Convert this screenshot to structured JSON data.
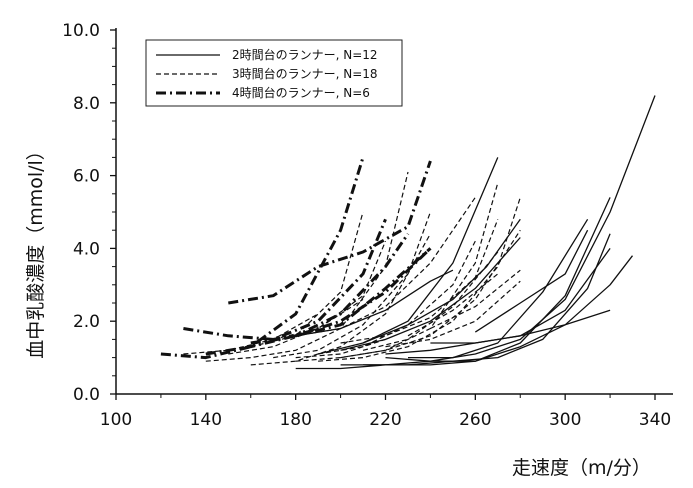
{
  "chart_data": {
    "type": "line",
    "xlabel": "走速度（m/分）",
    "ylabel": "血中乳酸濃度（mmol/l）",
    "xlim": [
      100,
      340
    ],
    "ylim": [
      0,
      10
    ],
    "x_ticks": [
      "100",
      "140",
      "180",
      "220",
      "260",
      "300",
      "340"
    ],
    "y_ticks": [
      "0.0",
      "2.0",
      "4.0",
      "6.0",
      "8.0",
      "10.0"
    ],
    "grid": false,
    "legend_position": "top-left",
    "legend": [
      {
        "label": "2時間台のランナー, N=12",
        "style": "solid"
      },
      {
        "label": "3時間台のランナー, N=18",
        "style": "dashed"
      },
      {
        "label": "4時間台のランナー, N=6",
        "style": "dashdot"
      }
    ],
    "series": [
      {
        "group": "2h",
        "style": "solid",
        "x": [
          180,
          200,
          220,
          240,
          260,
          280,
          300,
          320,
          340
        ],
        "y": [
          0.7,
          0.7,
          0.8,
          0.9,
          1.1,
          1.5,
          2.6,
          5.0,
          8.2
        ]
      },
      {
        "group": "2h",
        "style": "solid",
        "x": [
          200,
          220,
          240,
          260,
          280,
          300,
          320,
          330
        ],
        "y": [
          0.8,
          0.8,
          0.8,
          0.9,
          1.3,
          1.9,
          3.0,
          3.8
        ]
      },
      {
        "group": "2h",
        "style": "solid",
        "x": [
          210,
          230,
          250,
          270,
          290,
          310,
          320
        ],
        "y": [
          0.8,
          0.8,
          0.9,
          1.0,
          1.5,
          2.9,
          4.4
        ]
      },
      {
        "group": "2h",
        "style": "solid",
        "x": [
          220,
          240,
          260,
          280,
          300,
          320
        ],
        "y": [
          1.0,
          0.9,
          0.9,
          1.4,
          2.7,
          5.4
        ]
      },
      {
        "group": "2h",
        "style": "solid",
        "x": [
          230,
          250,
          270,
          290,
          310
        ],
        "y": [
          1.0,
          1.0,
          1.4,
          2.8,
          4.8
        ]
      },
      {
        "group": "2h",
        "style": "solid",
        "x": [
          240,
          260,
          280,
          300,
          320
        ],
        "y": [
          1.4,
          1.4,
          1.6,
          2.3,
          4.0
        ]
      },
      {
        "group": "2h",
        "style": "solid",
        "x": [
          220,
          240,
          260,
          280,
          300,
          320
        ],
        "y": [
          1.1,
          1.2,
          1.4,
          1.6,
          1.9,
          2.3
        ]
      },
      {
        "group": "2h",
        "style": "solid",
        "x": [
          260,
          280,
          300,
          310
        ],
        "y": [
          1.7,
          2.5,
          3.3,
          4.5
        ]
      },
      {
        "group": "2h",
        "style": "solid",
        "x": [
          190,
          210,
          230,
          250,
          270
        ],
        "y": [
          1.1,
          1.4,
          2.0,
          3.6,
          6.5
        ]
      },
      {
        "group": "2h",
        "style": "solid",
        "x": [
          200,
          220,
          240,
          260,
          280
        ],
        "y": [
          1.2,
          1.5,
          2.0,
          2.9,
          4.3
        ]
      },
      {
        "group": "2h",
        "style": "solid",
        "x": [
          210,
          230,
          250,
          265,
          280
        ],
        "y": [
          1.4,
          1.9,
          2.6,
          3.5,
          4.8
        ]
      },
      {
        "group": "2h",
        "style": "solid",
        "x": [
          180,
          200,
          220,
          240,
          250
        ],
        "y": [
          1.6,
          1.8,
          2.3,
          3.1,
          3.4
        ]
      },
      {
        "group": "3h",
        "style": "dashed",
        "x": [
          140,
          160,
          180,
          200,
          220,
          230
        ],
        "y": [
          0.9,
          1.0,
          1.2,
          1.8,
          3.5,
          6.1
        ]
      },
      {
        "group": "3h",
        "style": "dashed",
        "x": [
          160,
          180,
          200,
          220,
          240
        ],
        "y": [
          0.8,
          0.9,
          1.3,
          2.2,
          4.4
        ]
      },
      {
        "group": "3h",
        "style": "dashed",
        "x": [
          170,
          190,
          210,
          230,
          240
        ],
        "y": [
          1.0,
          1.2,
          1.9,
          3.3,
          5.0
        ]
      },
      {
        "group": "3h",
        "style": "dashed",
        "x": [
          180,
          200,
          220,
          240,
          260,
          270
        ],
        "y": [
          0.9,
          1.0,
          1.2,
          1.8,
          3.6,
          5.8
        ]
      },
      {
        "group": "3h",
        "style": "dashed",
        "x": [
          190,
          210,
          230,
          250,
          270,
          280
        ],
        "y": [
          0.9,
          1.0,
          1.3,
          2.0,
          3.5,
          5.4
        ]
      },
      {
        "group": "3h",
        "style": "dashed",
        "x": [
          200,
          220,
          240,
          260,
          280
        ],
        "y": [
          1.0,
          1.2,
          1.6,
          2.6,
          4.5
        ]
      },
      {
        "group": "3h",
        "style": "dashed",
        "x": [
          160,
          180,
          200,
          210
        ],
        "y": [
          1.3,
          1.6,
          2.8,
          5.0
        ]
      },
      {
        "group": "3h",
        "style": "dashed",
        "x": [
          170,
          190,
          210,
          220
        ],
        "y": [
          1.5,
          1.8,
          2.7,
          4.2
        ]
      },
      {
        "group": "3h",
        "style": "dashed",
        "x": [
          180,
          200,
          220,
          240,
          260
        ],
        "y": [
          1.6,
          1.8,
          2.4,
          3.6,
          5.4
        ]
      },
      {
        "group": "3h",
        "style": "dashed",
        "x": [
          200,
          220,
          240,
          260,
          270
        ],
        "y": [
          1.4,
          1.6,
          2.1,
          3.2,
          4.8
        ]
      },
      {
        "group": "3h",
        "style": "dashed",
        "x": [
          220,
          240,
          260,
          280
        ],
        "y": [
          1.3,
          1.5,
          2.0,
          3.1
        ]
      },
      {
        "group": "3h",
        "style": "dashed",
        "x": [
          190,
          210,
          230,
          250,
          260
        ],
        "y": [
          1.1,
          1.3,
          1.9,
          3.0,
          4.2
        ]
      },
      {
        "group": "3h",
        "style": "dashed",
        "x": [
          150,
          170,
          190,
          210
        ],
        "y": [
          1.1,
          1.3,
          1.8,
          2.6
        ]
      },
      {
        "group": "3h",
        "style": "dashed",
        "x": [
          240,
          260,
          280
        ],
        "y": [
          1.8,
          2.4,
          3.4
        ]
      },
      {
        "group": "3h",
        "style": "dashed",
        "x": [
          180,
          200,
          220
        ],
        "y": [
          1.0,
          1.1,
          1.5
        ]
      },
      {
        "group": "3h",
        "style": "dashed",
        "x": [
          210,
          230,
          250,
          270
        ],
        "y": [
          1.2,
          1.5,
          2.4,
          3.9
        ]
      },
      {
        "group": "3h",
        "style": "dashed",
        "x": [
          230,
          250,
          270
        ],
        "y": [
          1.6,
          2.3,
          3.3
        ]
      },
      {
        "group": "3h",
        "style": "dashed",
        "x": [
          130,
          150,
          170,
          190
        ],
        "y": [
          1.1,
          1.2,
          1.5,
          2.2
        ]
      },
      {
        "group": "4h",
        "style": "dashdot",
        "x": [
          120,
          140,
          160,
          180,
          200,
          210
        ],
        "y": [
          1.1,
          1.0,
          1.3,
          2.2,
          4.5,
          6.5
        ]
      },
      {
        "group": "4h",
        "style": "dashdot",
        "x": [
          130,
          150,
          170,
          190,
          210,
          220
        ],
        "y": [
          1.8,
          1.6,
          1.5,
          2.0,
          3.3,
          4.8
        ]
      },
      {
        "group": "4h",
        "style": "dashdot",
        "x": [
          150,
          170,
          190,
          210,
          230,
          240
        ],
        "y": [
          2.5,
          2.7,
          3.5,
          3.9,
          4.6,
          6.4
        ]
      },
      {
        "group": "4h",
        "style": "dashdot",
        "x": [
          140,
          160,
          180,
          200,
          220,
          240
        ],
        "y": [
          1.1,
          1.3,
          1.6,
          2.0,
          2.8,
          4.0
        ]
      },
      {
        "group": "4h",
        "style": "dashdot",
        "x": [
          160,
          180,
          200,
          220,
          230
        ],
        "y": [
          1.4,
          1.6,
          2.2,
          3.5,
          4.4
        ]
      },
      {
        "group": "4h",
        "style": "dashdot",
        "x": [
          180,
          200,
          220,
          240
        ],
        "y": [
          1.6,
          1.9,
          2.9,
          4.0
        ]
      }
    ]
  }
}
